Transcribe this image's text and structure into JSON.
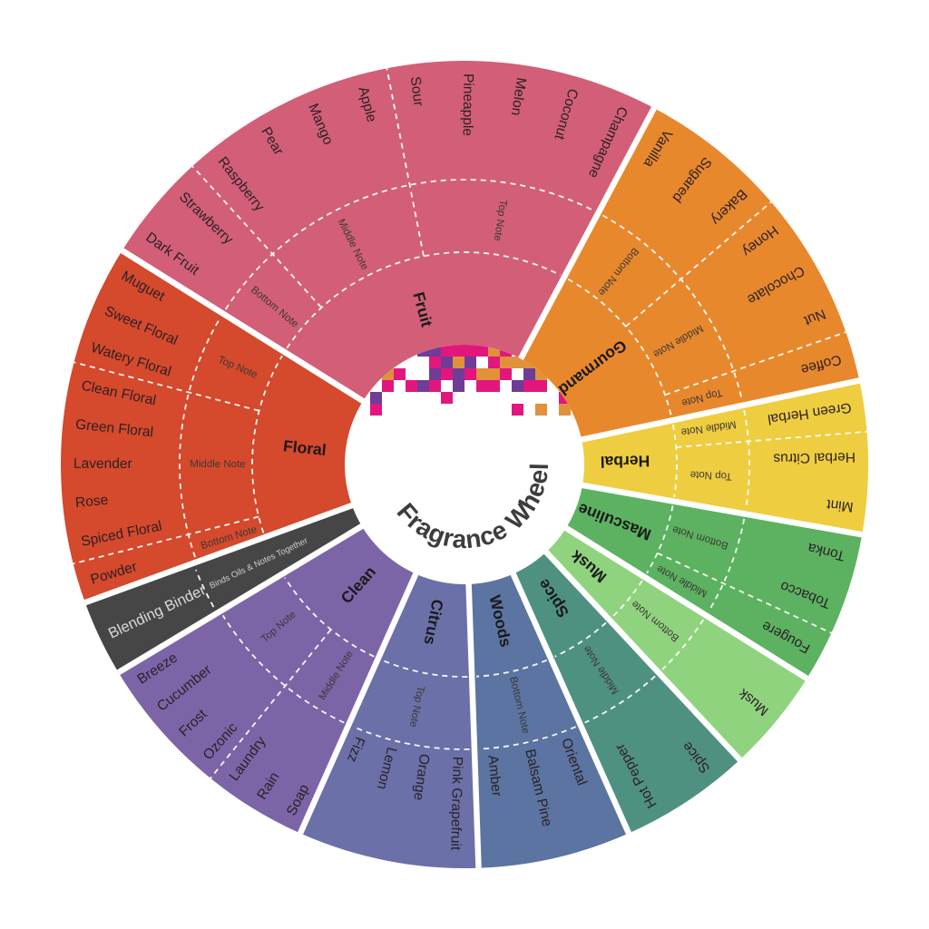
{
  "center": {
    "title": "Fragrance Wheel",
    "mosaic_colors": [
      "#e3167e",
      "#6f3c97",
      "#e0913a"
    ],
    "background": "#ffffff"
  },
  "chart_data": {
    "type": "sunburst",
    "title": "Fragrance Wheel",
    "rings": [
      "category",
      "note",
      "accord"
    ],
    "legend_position": "none",
    "grid": "dashed-white-dividers",
    "segments": [
      {
        "label": "Fruit",
        "color": "#d25f77",
        "start": -58,
        "end": 28,
        "text_flow": "in",
        "note_groups": [
          {
            "note": "Bottom Note",
            "items": [
              "Dark Fruit",
              "Strawberry"
            ]
          },
          {
            "note": "Middle Note",
            "items": [
              "Raspberry",
              "Pear",
              "Mango",
              "Apple"
            ]
          },
          {
            "note": "Top Note",
            "items": [
              "Sour",
              "Pineapple",
              "Melon",
              "Coconut",
              "Champagne"
            ]
          }
        ]
      },
      {
        "label": "Gourmand",
        "color": "#e8882d",
        "start": 28,
        "end": 78,
        "text_flow": "in",
        "note_groups": [
          {
            "note": "Bottom Note",
            "items": [
              "Vanilla",
              "Sugared",
              "Bakery"
            ]
          },
          {
            "note": "Middle Note",
            "items": [
              "Honey",
              "Chocolate",
              "Nut"
            ]
          },
          {
            "note": "Top Note",
            "items": [
              "Coffee"
            ]
          }
        ]
      },
      {
        "label": "Herbal",
        "color": "#eecd40",
        "start": 78,
        "end": 100,
        "text_flow": "in",
        "note_groups": [
          {
            "note": "Middle Note",
            "items": [
              "Green Herbal"
            ]
          },
          {
            "note": "Top Note",
            "items": [
              "Herbal Citrus",
              "Mint"
            ]
          }
        ]
      },
      {
        "label": "Masculine",
        "color": "#5cb260",
        "start": 100,
        "end": 122,
        "text_flow": "in",
        "note_groups": [
          {
            "note": "Bottom Note",
            "items": [
              "Tonka",
              "Tobacco"
            ]
          },
          {
            "note": "Middle Note",
            "items": [
              "Fougere"
            ]
          }
        ]
      },
      {
        "label": "Musk",
        "color": "#90d37f",
        "start": 122,
        "end": 137,
        "text_flow": "in",
        "note_groups": [
          {
            "note": "Bottom Note",
            "items": [
              "Musk"
            ]
          }
        ]
      },
      {
        "label": "Spice",
        "color": "#4f9181",
        "start": 137,
        "end": 156,
        "text_flow": "in",
        "note_groups": [
          {
            "note": "Middle Note",
            "items": [
              "Spice",
              "Hot Pepper"
            ]
          }
        ]
      },
      {
        "label": "Woods",
        "color": "#5b74a1",
        "start": 156,
        "end": 178,
        "text_flow": "out",
        "note_groups": [
          {
            "note": "Bottom Note",
            "items": [
              "Oriental",
              "Balsam Pine",
              "Amber"
            ]
          }
        ]
      },
      {
        "label": "Citrus",
        "color": "#6b70a8",
        "start": 178,
        "end": 204,
        "text_flow": "out",
        "note_groups": [
          {
            "note": "Top Note",
            "items": [
              "Pink Grapefruit",
              "Orange",
              "Lemon",
              "Fizz"
            ]
          }
        ]
      },
      {
        "label": "Clean",
        "color": "#7c65a7",
        "start": 204,
        "end": 239,
        "text_flow": "in",
        "note_groups": [
          {
            "note": "Middle Note",
            "items": [
              "Soap",
              "Rain",
              "Laundry"
            ]
          },
          {
            "note": "Top Note",
            "items": [
              "Ozonic",
              "Frost",
              "Cucumber",
              "Breeze"
            ]
          }
        ]
      },
      {
        "label": "Blending Binder",
        "sub_label": "Binds Oils & Notes Together",
        "binder": true,
        "color": "#464646",
        "start": 239,
        "end": 250,
        "text_flow": "in",
        "note_groups": []
      },
      {
        "label": "Floral",
        "color": "#d5492c",
        "start": 250,
        "end": 302,
        "text_flow": "in",
        "note_groups": [
          {
            "note": "Bottom Note",
            "items": [
              "Powder"
            ]
          },
          {
            "note": "Middle Note",
            "items": [
              "Spiced Floral",
              "Rose",
              "Lavender",
              "Green Floral",
              "Clean Floral"
            ]
          },
          {
            "note": "Top Note",
            "items": [
              "Watery Floral",
              "Sweet Floral",
              "Muguet"
            ]
          }
        ]
      }
    ]
  }
}
